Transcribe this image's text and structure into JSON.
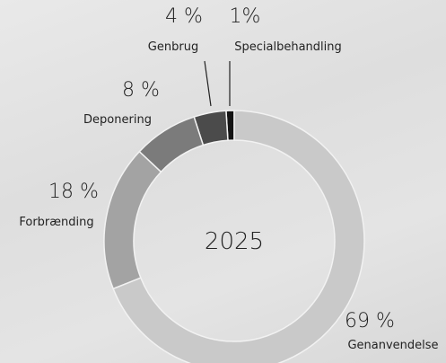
{
  "chart_data": {
    "type": "donut",
    "center_label": "2025",
    "categories": [
      "Genanvendelse",
      "Forbrænding",
      "Deponering",
      "Genbrug",
      "Specialbehandling"
    ],
    "values": [
      69,
      18,
      8,
      4,
      1
    ],
    "value_labels": [
      "69 %",
      "18 %",
      "8 %",
      "4 %",
      "1%"
    ],
    "colors": [
      "#c9c9c9",
      "#a3a3a3",
      "#7b7b7b",
      "#4b4b4b",
      "#141414"
    ]
  }
}
